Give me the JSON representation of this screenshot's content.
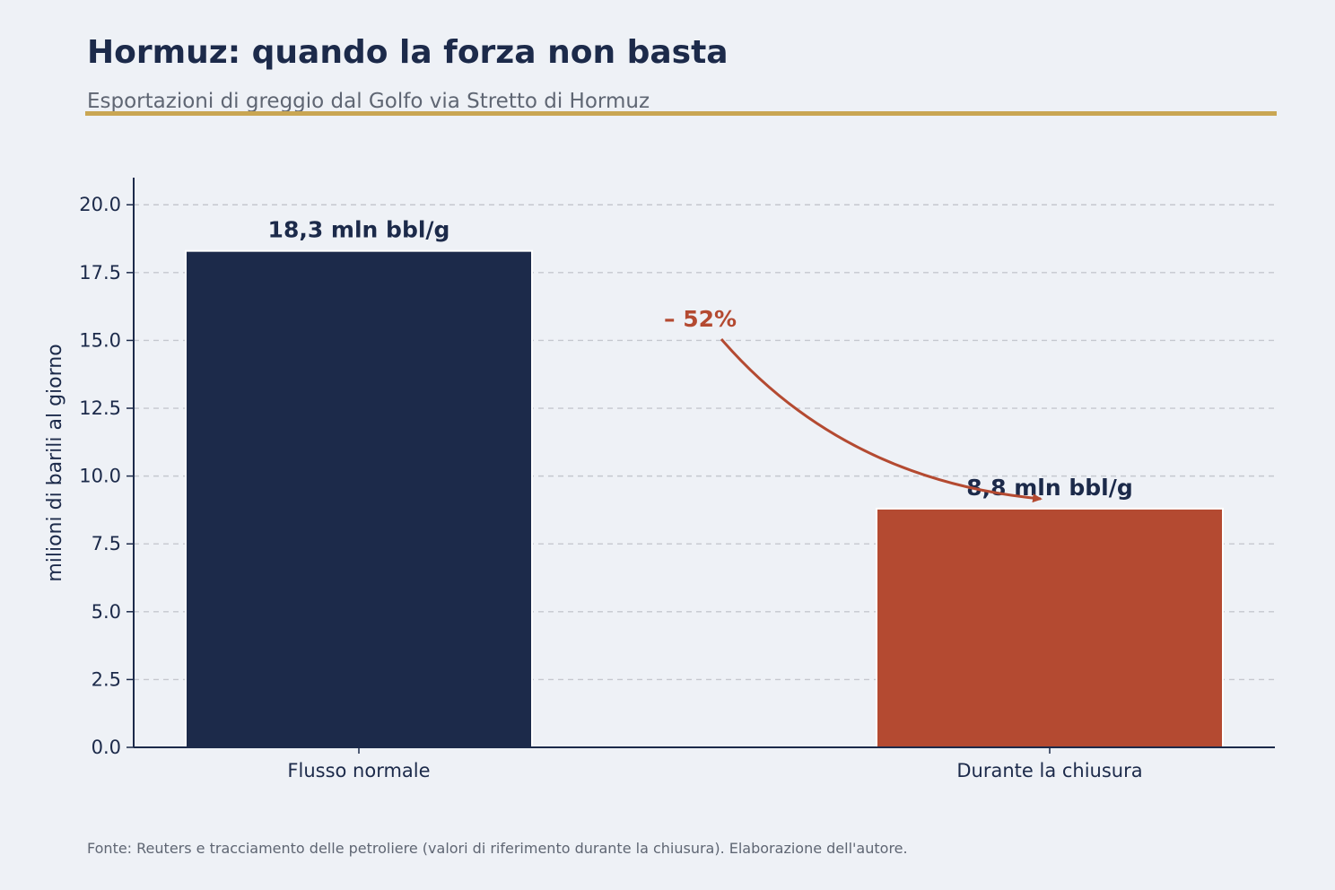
{
  "header": {
    "title": "Hormuz: quando la forza non basta",
    "subtitle": "Esportazioni di greggio dal Golfo via Stretto di Hormuz"
  },
  "footer": {
    "source": "Fonte: Reuters e tracciamento delle petroliere (valori di riferimento durante la chiusura). Elaborazione dell'autore."
  },
  "colors": {
    "background": "#eef1f6",
    "navy": "#1c2a4a",
    "rust": "#b44a31",
    "gold_rule": "#c9a653",
    "grid": "#c5c8cf",
    "muted_text": "#5f6673"
  },
  "chart_data": {
    "type": "bar",
    "title": "Hormuz: quando la forza non basta",
    "subtitle": "Esportazioni di greggio dal Golfo via Stretto di Hormuz",
    "xlabel": "",
    "ylabel": "milioni di barili al giorno",
    "categories": [
      "Flusso normale",
      "Durante la chiusura"
    ],
    "values": [
      18.3,
      8.8
    ],
    "value_labels": [
      "18,3 mln bbl/g",
      "8,8 mln bbl/g"
    ],
    "bar_colors": [
      "#1c2a4a",
      "#b44a31"
    ],
    "ylim": [
      0,
      21
    ],
    "yticks": [
      0.0,
      2.5,
      5.0,
      7.5,
      10.0,
      12.5,
      15.0,
      17.5,
      20.0
    ],
    "ytick_labels": [
      "0.0",
      "2.5",
      "5.0",
      "7.5",
      "10.0",
      "12.5",
      "15.0",
      "17.5",
      "20.0"
    ],
    "grid": "horizontal dashed",
    "annotation": {
      "text": "– 52%",
      "color": "#b44a31",
      "arrow": "curved, from first bar toward second bar label"
    }
  }
}
